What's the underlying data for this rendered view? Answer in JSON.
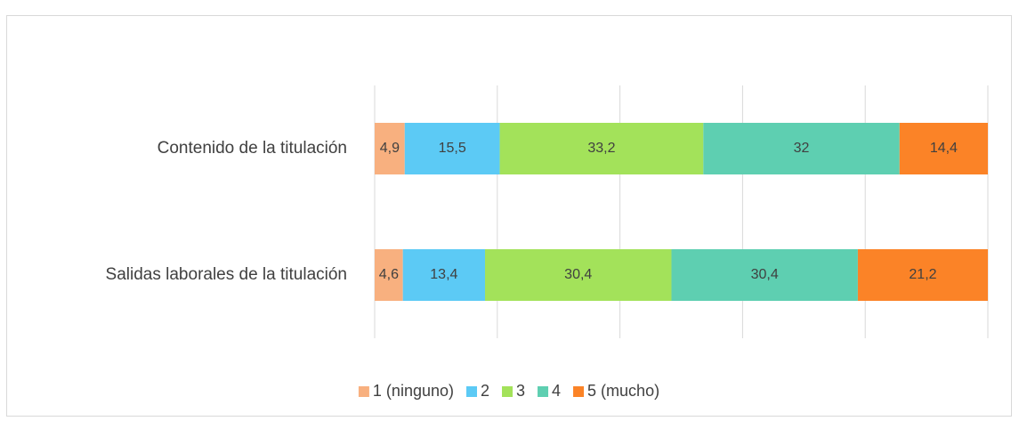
{
  "chart_data": {
    "type": "stacked-bar-horizontal",
    "categories": [
      "Contenido de la titulación",
      "Salidas laborales de la titulación"
    ],
    "series": [
      {
        "name": "1 (ninguno)",
        "color": "#f8b07f",
        "values": [
          4.9,
          4.6
        ],
        "value_labels": [
          "4,9",
          "4,6"
        ]
      },
      {
        "name": "2",
        "color": "#5ccaf5",
        "values": [
          15.5,
          13.4
        ],
        "value_labels": [
          "15,5",
          "13,4"
        ]
      },
      {
        "name": "3",
        "color": "#a3e25a",
        "values": [
          33.2,
          30.4
        ],
        "value_labels": [
          "33,2",
          "30,4"
        ]
      },
      {
        "name": "4",
        "color": "#5ecfb1",
        "values": [
          32,
          30.4
        ],
        "value_labels": [
          "32",
          "30,4"
        ]
      },
      {
        "name": "5 (mucho)",
        "color": "#fb8327",
        "values": [
          14.4,
          21.2
        ],
        "value_labels": [
          "14,4",
          "21,2"
        ]
      }
    ],
    "xlim": [
      0,
      100
    ],
    "xticks": [
      0,
      20,
      40,
      60,
      80,
      100
    ],
    "grid": true,
    "legend": "bottom"
  }
}
